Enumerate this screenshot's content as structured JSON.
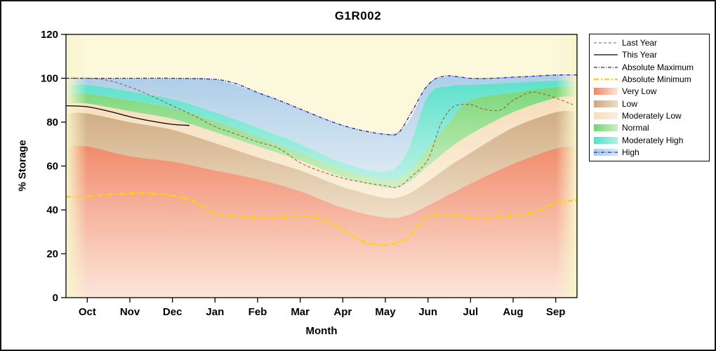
{
  "title": "G1R002",
  "axes": {
    "x_label": "Month",
    "y_label": "% Storage"
  },
  "colors": {
    "figure_bg": "#FFFFFF",
    "plot_bg": "#FBF8DC",
    "edge_fade": "#F8F4CC",
    "frame": "#000000"
  },
  "chart_data": {
    "type": "area",
    "title": "G1R002",
    "xlabel": "Month",
    "ylabel": "% Storage",
    "months": [
      "Oct",
      "Nov",
      "Dec",
      "Jan",
      "Feb",
      "Mar",
      "Apr",
      "May",
      "Jun",
      "Jul",
      "Aug",
      "Sep"
    ],
    "ylim": [
      0,
      120
    ],
    "yticks": [
      0,
      20,
      40,
      60,
      80,
      100,
      120
    ],
    "xlim": [
      -0.5,
      11.5
    ],
    "band_x": [
      -0.5,
      0,
      1,
      2,
      3,
      4,
      5,
      6,
      7,
      7.5,
      8,
      8.5,
      9,
      10,
      11,
      11.5
    ],
    "bands": [
      {
        "name": "Very Low",
        "color": "#F08566",
        "fade": "#FCE4DA",
        "top": [
          69,
          69,
          64.5,
          62,
          58,
          54,
          48.5,
          41,
          36.5,
          37.5,
          42,
          47,
          52,
          61,
          68,
          69
        ]
      },
      {
        "name": "Low",
        "color": "#CEA87E",
        "fade": "#EDDCC5",
        "top": [
          84,
          84,
          80,
          76.5,
          70.5,
          64,
          58,
          50.5,
          45.5,
          47,
          53,
          60,
          66,
          77.5,
          84.5,
          85
        ]
      },
      {
        "name": "Moderately Low",
        "color": "#F6DCBA",
        "fade": "#FBEFDC",
        "top": [
          88.5,
          88.5,
          85,
          81.5,
          75.5,
          69,
          62.5,
          55,
          50,
          52,
          60,
          68,
          74.5,
          84.5,
          91,
          91.5
        ]
      },
      {
        "name": "Normal",
        "color": "#72D572",
        "fade": "#CDEFC4",
        "top": [
          93,
          93,
          90,
          86.5,
          80.5,
          73.5,
          66,
          58.5,
          54,
          57,
          68,
          80,
          90,
          93.5,
          96,
          96.5
        ]
      },
      {
        "name": "Moderately High",
        "color": "#55E0CB",
        "fade": "#AFF0E4",
        "top": [
          97,
          97,
          94,
          90.5,
          84.5,
          77.5,
          70,
          61.5,
          57.5,
          66,
          92,
          96.5,
          97,
          98,
          99,
          99
        ]
      },
      {
        "name": "High",
        "color": "#A9CBE8",
        "fade": "#D6E7F5",
        "top": [
          100,
          100,
          100,
          100,
          99.5,
          93.5,
          86,
          78.5,
          74.5,
          79,
          97,
          100.8,
          100,
          100.5,
          101.5,
          101.5
        ]
      }
    ],
    "lines": [
      {
        "name": "Last Year",
        "color": "#A0522D",
        "width": 1,
        "dash": "4 3",
        "x": [
          -0.5,
          0,
          0.5,
          1,
          1.5,
          2,
          2.5,
          3,
          3.5,
          4,
          4.5,
          5,
          5.5,
          6,
          6.5,
          7,
          7.3,
          7.6,
          8,
          8.3,
          8.6,
          9,
          9.3,
          9.7,
          10,
          10.4,
          10.7,
          11,
          11.4
        ],
        "y": [
          100,
          100,
          99,
          96,
          92,
          87.5,
          83,
          78,
          74.5,
          71,
          68,
          61.5,
          57.5,
          54.5,
          52.5,
          51,
          50.5,
          55,
          63,
          79,
          87,
          88,
          86,
          85.5,
          90,
          93.5,
          93,
          91,
          88
        ]
      },
      {
        "name": "This Year",
        "color": "#000000",
        "width": 1.3,
        "dash": "",
        "x": [
          -0.5,
          0,
          0.5,
          1,
          1.5,
          2,
          2.4
        ],
        "y": [
          87.5,
          87,
          85,
          82.5,
          80.5,
          79,
          78.5
        ]
      },
      {
        "name": "Absolute Maximum",
        "color": "#2020C8",
        "width": 1.3,
        "dash": "5 2 1 2",
        "x": [
          -0.5,
          0,
          1,
          2,
          3,
          3.5,
          4,
          4.5,
          5,
          5.5,
          6,
          6.5,
          7,
          7.3,
          7.6,
          8,
          8.4,
          9,
          9.5,
          10,
          10.5,
          11,
          11.5
        ],
        "y": [
          100,
          100,
          100,
          100,
          99.5,
          97.5,
          93.5,
          90,
          86,
          82,
          78.5,
          76,
          74.5,
          75,
          84,
          97,
          101,
          100,
          100,
          100.5,
          101,
          101.5,
          101.5
        ]
      },
      {
        "name": "Absolute Minimum",
        "color": "#FFD400",
        "width": 2.5,
        "dash": "7 3 2 3",
        "x": [
          -0.5,
          0,
          0.5,
          1,
          1.5,
          2,
          2.5,
          3,
          3.5,
          4,
          4.5,
          5,
          5.5,
          6,
          6.5,
          7,
          7.5,
          8,
          8.5,
          9,
          9.5,
          10,
          10.5,
          11,
          11.5
        ],
        "y": [
          46,
          46,
          47,
          47.5,
          47.5,
          46.5,
          44,
          38.5,
          37,
          36.5,
          36.5,
          37,
          36,
          31,
          25.5,
          24,
          27,
          37,
          37.5,
          36.5,
          36.5,
          37.5,
          39,
          43,
          44.5
        ]
      }
    ]
  },
  "legend": {
    "items": [
      {
        "label": "Last Year",
        "sample": "line",
        "color": "#A0522D",
        "dash": "4 3",
        "width": 1
      },
      {
        "label": "This Year",
        "sample": "line",
        "color": "#000000",
        "dash": "",
        "width": 1.3
      },
      {
        "label": "Absolute Maximum",
        "sample": "line",
        "color": "#2020C8",
        "dash": "5 2 1 2",
        "width": 1.3
      },
      {
        "label": "Absolute Minimum",
        "sample": "line",
        "color": "#FFD400",
        "dash": "7 3 2 3",
        "width": 2.5
      },
      {
        "label": "Very Low",
        "sample": "swatch",
        "color": "#F08566",
        "fade": "#FCE4DA"
      },
      {
        "label": "Low",
        "sample": "swatch",
        "color": "#CEA87E",
        "fade": "#EDDCC5"
      },
      {
        "label": "Moderately Low",
        "sample": "swatch",
        "color": "#F6DCBA",
        "fade": "#FBEFDC"
      },
      {
        "label": "Normal",
        "sample": "swatch",
        "color": "#72D572",
        "fade": "#CDEFC4"
      },
      {
        "label": "Moderately High",
        "sample": "swatch",
        "color": "#55E0CB",
        "fade": "#AFF0E4"
      },
      {
        "label": "High",
        "sample": "swatch-line",
        "color": "#A9CBE8",
        "fade": "#D6E7F5",
        "line_color": "#2020C8",
        "dash": "5 2 1 2",
        "width": 1.3
      }
    ]
  }
}
